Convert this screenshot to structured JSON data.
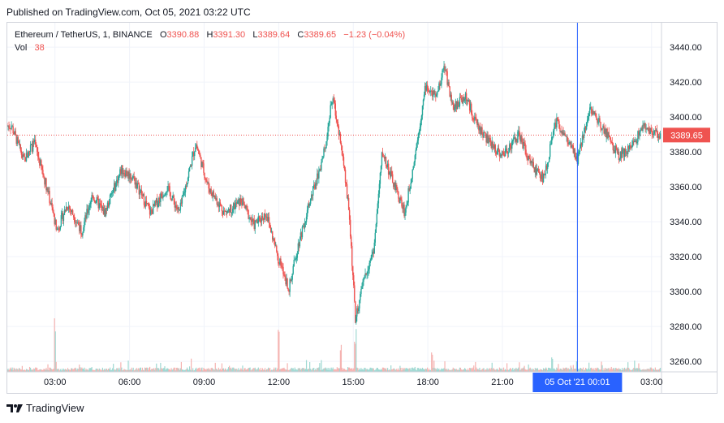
{
  "header": {
    "published": "Published on TradingView.com, Oct 05, 2021 03:22 UTC"
  },
  "legend": {
    "symbol": "Ethereum / TetherUS, 1, BINANCE",
    "o_label": "O",
    "o_value": "3390.88",
    "h_label": "H",
    "h_value": "3391.30",
    "l_label": "L",
    "l_value": "3389.64",
    "c_label": "C",
    "c_value": "3389.65",
    "change": "−1.23 (−0.04%)",
    "vol_label": "Vol",
    "vol_value": "38"
  },
  "footer": {
    "brand": "TradingView"
  },
  "colors": {
    "up": "#26a69a",
    "down": "#ef5350",
    "crosshair": "#2962ff",
    "price_line": "#ef5350"
  },
  "chart_data": {
    "type": "candlestick",
    "symbol": "Ethereum / TetherUS, 1, BINANCE",
    "x_tick_labels": [
      "03:00",
      "06:00",
      "09:00",
      "12:00",
      "15:00",
      "18:00",
      "21:00",
      "00:01",
      "03:00"
    ],
    "y_tick_labels": [
      3260,
      3280,
      3300,
      3320,
      3340,
      3360,
      3380,
      3400,
      3420,
      3440
    ],
    "ylim": [
      3254,
      3454
    ],
    "current_price": 3389.65,
    "crosshair_label": "05 Oct '21   00:01",
    "last_close_label": "3389.65",
    "price_path": [
      {
        "t": "01:15",
        "p": 3395
      },
      {
        "t": "01:45",
        "p": 3375
      },
      {
        "t": "02:10",
        "p": 3385
      },
      {
        "t": "02:40",
        "p": 3360
      },
      {
        "t": "03:05",
        "p": 3335
      },
      {
        "t": "03:30",
        "p": 3350
      },
      {
        "t": "04:05",
        "p": 3335
      },
      {
        "t": "04:30",
        "p": 3355
      },
      {
        "t": "05:00",
        "p": 3345
      },
      {
        "t": "05:40",
        "p": 3370
      },
      {
        "t": "06:10",
        "p": 3365
      },
      {
        "t": "06:50",
        "p": 3345
      },
      {
        "t": "07:30",
        "p": 3360
      },
      {
        "t": "08:00",
        "p": 3345
      },
      {
        "t": "08:40",
        "p": 3385
      },
      {
        "t": "09:10",
        "p": 3360
      },
      {
        "t": "09:50",
        "p": 3345
      },
      {
        "t": "10:30",
        "p": 3352
      },
      {
        "t": "11:00",
        "p": 3338
      },
      {
        "t": "11:30",
        "p": 3345
      },
      {
        "t": "12:00",
        "p": 3318
      },
      {
        "t": "12:25",
        "p": 3302
      },
      {
        "t": "12:50",
        "p": 3330
      },
      {
        "t": "13:20",
        "p": 3355
      },
      {
        "t": "13:50",
        "p": 3380
      },
      {
        "t": "14:10",
        "p": 3412
      },
      {
        "t": "14:30",
        "p": 3385
      },
      {
        "t": "14:50",
        "p": 3345
      },
      {
        "t": "15:05",
        "p": 3285
      },
      {
        "t": "15:30",
        "p": 3310
      },
      {
        "t": "15:50",
        "p": 3325
      },
      {
        "t": "16:10",
        "p": 3380
      },
      {
        "t": "16:40",
        "p": 3360
      },
      {
        "t": "17:05",
        "p": 3345
      },
      {
        "t": "17:30",
        "p": 3380
      },
      {
        "t": "17:55",
        "p": 3418
      },
      {
        "t": "18:20",
        "p": 3410
      },
      {
        "t": "18:40",
        "p": 3430
      },
      {
        "t": "19:00",
        "p": 3405
      },
      {
        "t": "19:30",
        "p": 3412
      },
      {
        "t": "20:00",
        "p": 3395
      },
      {
        "t": "20:30",
        "p": 3385
      },
      {
        "t": "21:00",
        "p": 3378
      },
      {
        "t": "21:40",
        "p": 3390
      },
      {
        "t": "22:10",
        "p": 3372
      },
      {
        "t": "22:40",
        "p": 3365
      },
      {
        "t": "23:10",
        "p": 3398
      },
      {
        "t": "23:40",
        "p": 3385
      },
      {
        "t": "00:01",
        "p": 3375
      },
      {
        "t": "00:30",
        "p": 3405
      },
      {
        "t": "01:00",
        "p": 3395
      },
      {
        "t": "01:40",
        "p": 3378
      },
      {
        "t": "02:10",
        "p": 3382
      },
      {
        "t": "02:40",
        "p": 3395
      },
      {
        "t": "03:00",
        "p": 3390
      }
    ],
    "volume_path": [
      {
        "t": "02:00",
        "v": 15
      },
      {
        "t": "03:00",
        "v": 150
      },
      {
        "t": "04:00",
        "v": 20
      },
      {
        "t": "10:00",
        "v": 18
      },
      {
        "t": "12:00",
        "v": 170
      },
      {
        "t": "14:30",
        "v": 90
      },
      {
        "t": "15:05",
        "v": 110
      },
      {
        "t": "18:10",
        "v": 75
      },
      {
        "t": "23:00",
        "v": 40
      },
      {
        "t": "01:00",
        "v": 30
      },
      {
        "t": "03:00",
        "v": 15
      }
    ],
    "grid": true
  }
}
